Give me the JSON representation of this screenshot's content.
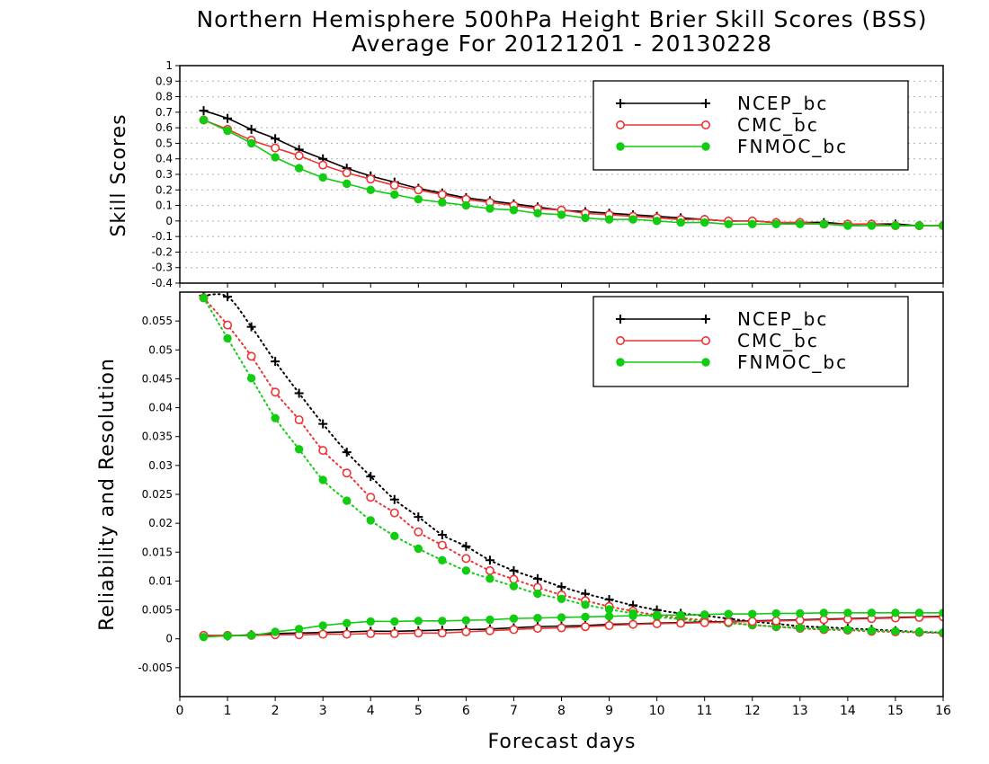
{
  "title_line1": "Northern Hemisphere 500hPa Height Brier Skill Scores (BSS)",
  "title_line2": "Average For 20121201 - 20130228",
  "xlabel": "Forecast days",
  "colors": {
    "NCEP_bc": "#000000",
    "CMC_bc": "#ee3333",
    "FNMOC_bc": "#11cc11"
  },
  "chart_data": [
    {
      "type": "line",
      "ylabel": "Skill Scores",
      "xlim": [
        0,
        16
      ],
      "ylim": [
        -0.4,
        1
      ],
      "x_ticks": [
        "0",
        "1",
        "2",
        "3",
        "4",
        "5",
        "6",
        "7",
        "8",
        "9",
        "10",
        "11",
        "12",
        "13",
        "14",
        "15",
        "16"
      ],
      "y_ticks": [
        "-0.4",
        "-0.3",
        "-0.2",
        "-0.1",
        "0",
        "0.1",
        "0.2",
        "0.3",
        "0.4",
        "0.5",
        "0.6",
        "0.7",
        "0.8",
        "0.9",
        "1"
      ],
      "grid": true,
      "legend": "top-right",
      "x": [
        0.5,
        1,
        1.5,
        2,
        2.5,
        3,
        3.5,
        4,
        4.5,
        5,
        5.5,
        6,
        6.5,
        7,
        7.5,
        8,
        8.5,
        9,
        9.5,
        10,
        10.5,
        11,
        11.5,
        12,
        12.5,
        13,
        13.5,
        14,
        14.5,
        15,
        15.5,
        16
      ],
      "series": [
        {
          "name": "NCEP_bc",
          "marker": "plus",
          "values": [
            0.71,
            0.66,
            0.59,
            0.53,
            0.46,
            0.4,
            0.34,
            0.29,
            0.25,
            0.21,
            0.18,
            0.15,
            0.13,
            0.11,
            0.09,
            0.07,
            0.06,
            0.05,
            0.04,
            0.03,
            0.02,
            0.01,
            0.0,
            0.0,
            -0.01,
            -0.01,
            -0.01,
            -0.02,
            -0.02,
            -0.02,
            -0.03,
            -0.03
          ]
        },
        {
          "name": "CMC_bc",
          "marker": "open-circle",
          "values": [
            0.65,
            0.59,
            0.52,
            0.47,
            0.42,
            0.36,
            0.31,
            0.27,
            0.23,
            0.2,
            0.17,
            0.14,
            0.12,
            0.1,
            0.08,
            0.07,
            0.05,
            0.04,
            0.03,
            0.02,
            0.01,
            0.01,
            0.0,
            0.0,
            -0.01,
            -0.01,
            -0.02,
            -0.02,
            -0.02,
            -0.03,
            -0.03,
            -0.03
          ]
        },
        {
          "name": "FNMOC_bc",
          "marker": "filled-circle",
          "values": [
            0.65,
            0.58,
            0.5,
            0.41,
            0.34,
            0.28,
            0.24,
            0.2,
            0.17,
            0.14,
            0.12,
            0.1,
            0.08,
            0.07,
            0.05,
            0.04,
            0.02,
            0.01,
            0.01,
            0.0,
            -0.01,
            -0.01,
            -0.02,
            -0.02,
            -0.02,
            -0.02,
            -0.02,
            -0.03,
            -0.03,
            -0.03,
            -0.03,
            -0.03
          ]
        }
      ]
    },
    {
      "type": "line",
      "ylabel": "Reliability and Resolution",
      "xlim": [
        0,
        16
      ],
      "ylim": [
        -0.01,
        0.06
      ],
      "x_ticks": [
        "0",
        "1",
        "2",
        "3",
        "4",
        "5",
        "6",
        "7",
        "8",
        "9",
        "10",
        "11",
        "12",
        "13",
        "14",
        "15",
        "16"
      ],
      "y_ticks": [
        "-0.005",
        "0",
        "0.005",
        "0.01",
        "0.015",
        "0.02",
        "0.025",
        "0.03",
        "0.035",
        "0.04",
        "0.045",
        "0.05",
        "0.055"
      ],
      "grid": false,
      "legend": "top-right",
      "x": [
        0.5,
        1,
        1.5,
        2,
        2.5,
        3,
        3.5,
        4,
        4.5,
        5,
        5.5,
        6,
        6.5,
        7,
        7.5,
        8,
        8.5,
        9,
        9.5,
        10,
        10.5,
        11,
        11.5,
        12,
        12.5,
        13,
        13.5,
        14,
        14.5,
        15,
        15.5,
        16
      ],
      "series": [
        {
          "name": "NCEP_bc",
          "marker": "plus",
          "line": "dotted",
          "values": [
            0.0594,
            0.0592,
            0.054,
            0.048,
            0.0425,
            0.0372,
            0.0323,
            0.0281,
            0.0241,
            0.0211,
            0.018,
            0.016,
            0.0136,
            0.0118,
            0.0104,
            0.009,
            0.0078,
            0.0068,
            0.0058,
            0.005,
            0.0044,
            0.004,
            0.0035,
            0.003,
            0.0026,
            0.0022,
            0.002,
            0.0018,
            0.0016,
            0.0014,
            0.0012,
            0.0011
          ]
        },
        {
          "name": "CMC_bc",
          "marker": "open-circle",
          "line": "dotted",
          "values": [
            0.059,
            0.0543,
            0.0489,
            0.0427,
            0.0379,
            0.0326,
            0.0287,
            0.0245,
            0.0218,
            0.0185,
            0.0162,
            0.0139,
            0.0118,
            0.0103,
            0.0089,
            0.0076,
            0.0066,
            0.0056,
            0.0048,
            0.0041,
            0.0036,
            0.0032,
            0.0028,
            0.0024,
            0.0021,
            0.0018,
            0.0016,
            0.0015,
            0.0013,
            0.0012,
            0.0011,
            0.001
          ]
        },
        {
          "name": "FNMOC_bc",
          "marker": "filled-circle",
          "line": "dotted",
          "values": [
            0.059,
            0.052,
            0.0451,
            0.0382,
            0.0328,
            0.0275,
            0.0239,
            0.0205,
            0.0178,
            0.0156,
            0.0136,
            0.0118,
            0.0104,
            0.0091,
            0.0078,
            0.0069,
            0.0059,
            0.0051,
            0.0044,
            0.0038,
            0.0034,
            0.003,
            0.0027,
            0.0024,
            0.0021,
            0.0019,
            0.0017,
            0.0016,
            0.0014,
            0.0013,
            0.0012,
            0.0011
          ]
        },
        {
          "name": "NCEP_bc",
          "marker": "plus",
          "line": "solid",
          "values": [
            0.0005,
            0.0005,
            0.0007,
            0.0009,
            0.001,
            0.0011,
            0.0012,
            0.0013,
            0.0013,
            0.0014,
            0.0015,
            0.0016,
            0.0017,
            0.0019,
            0.0021,
            0.0022,
            0.0023,
            0.0025,
            0.0026,
            0.0027,
            0.0028,
            0.0029,
            0.003,
            0.0031,
            0.0032,
            0.0033,
            0.0034,
            0.0035,
            0.0036,
            0.0037,
            0.0038,
            0.0039
          ]
        },
        {
          "name": "CMC_bc",
          "marker": "open-circle",
          "line": "solid",
          "values": [
            0.0006,
            0.0006,
            0.0006,
            0.0007,
            0.0007,
            0.0008,
            0.0008,
            0.0009,
            0.0009,
            0.001,
            0.001,
            0.0012,
            0.0014,
            0.0016,
            0.0018,
            0.0019,
            0.0021,
            0.0023,
            0.0025,
            0.0026,
            0.0027,
            0.0028,
            0.0029,
            0.003,
            0.0031,
            0.0032,
            0.0033,
            0.0034,
            0.0035,
            0.0036,
            0.0037,
            0.0038
          ]
        },
        {
          "name": "FNMOC_bc",
          "marker": "filled-circle",
          "line": "solid",
          "values": [
            0.0003,
            0.0005,
            0.0006,
            0.0012,
            0.0017,
            0.0023,
            0.0027,
            0.003,
            0.003,
            0.0031,
            0.0031,
            0.0032,
            0.0033,
            0.0035,
            0.0036,
            0.0037,
            0.0038,
            0.0039,
            0.004,
            0.0041,
            0.0041,
            0.0042,
            0.0043,
            0.0043,
            0.0044,
            0.0044,
            0.0045,
            0.0045,
            0.0045,
            0.0045,
            0.0045,
            0.0045
          ]
        }
      ]
    }
  ]
}
